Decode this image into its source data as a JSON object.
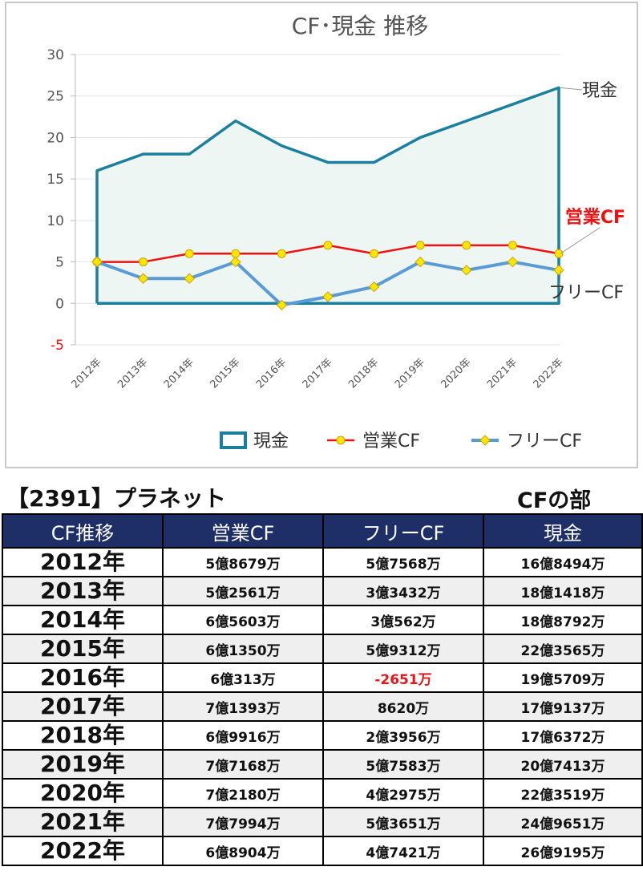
{
  "chart_data": {
    "type": "line",
    "title": "CF･現金 推移",
    "categories": [
      "2012年",
      "2013年",
      "2014年",
      "2015年",
      "2016年",
      "2017年",
      "2018年",
      "2019年",
      "2020年",
      "2021年",
      "2022年"
    ],
    "ylim": [
      -5,
      30
    ],
    "yticks": [
      "30",
      "25",
      "20",
      "15",
      "10",
      "5",
      "0",
      "-5"
    ],
    "grid": true,
    "series": [
      {
        "name": "現金",
        "style": "area",
        "color": "#1b7f9e",
        "values": [
          16,
          18,
          18,
          22,
          19,
          17,
          17,
          20,
          22,
          24,
          26
        ]
      },
      {
        "name": "営業CF",
        "style": "line-marker",
        "color": "#ee1111",
        "values": [
          5,
          5,
          6,
          6,
          6,
          7,
          6,
          7,
          7,
          7,
          6
        ]
      },
      {
        "name": "フリーCF",
        "style": "line-marker",
        "color": "#5b9bd5",
        "values": [
          5,
          3,
          3,
          5,
          -0.2,
          0.8,
          2,
          5,
          4,
          5,
          4
        ]
      }
    ],
    "legend_position": "bottom",
    "colors": {
      "area_fill": "#eef6f4",
      "marker_fill": "#ffe600",
      "marker_stroke": "#c9a400",
      "negative_tick": "#ee1111"
    }
  },
  "company_title": "【2391】プラネット",
  "section_title": "CFの部",
  "table": {
    "headers": [
      "CF推移",
      "営業CF",
      "フリーCF",
      "現金"
    ],
    "rows": [
      {
        "year": "2012年",
        "op_cf": "5億8679万",
        "free_cf": "5億7568万",
        "cash": "16億8494万"
      },
      {
        "year": "2013年",
        "op_cf": "5億2561万",
        "free_cf": "3億3432万",
        "cash": "18億1418万"
      },
      {
        "year": "2014年",
        "op_cf": "6億5603万",
        "free_cf": "3億562万",
        "cash": "18億8792万"
      },
      {
        "year": "2015年",
        "op_cf": "6億1350万",
        "free_cf": "5億9312万",
        "cash": "22億3565万"
      },
      {
        "year": "2016年",
        "op_cf": "6億313万",
        "free_cf": "-2651万",
        "cash": "19億5709万"
      },
      {
        "year": "2017年",
        "op_cf": "7億1393万",
        "free_cf": "8620万",
        "cash": "17億9137万"
      },
      {
        "year": "2018年",
        "op_cf": "6億9916万",
        "free_cf": "2億3956万",
        "cash": "17億6372万"
      },
      {
        "year": "2019年",
        "op_cf": "7億7168万",
        "free_cf": "5億7583万",
        "cash": "20億7413万"
      },
      {
        "year": "2020年",
        "op_cf": "7億2180万",
        "free_cf": "4億2975万",
        "cash": "22億3519万"
      },
      {
        "year": "2021年",
        "op_cf": "7億7994万",
        "free_cf": "5億3651万",
        "cash": "24億9651万"
      },
      {
        "year": "2022年",
        "op_cf": "6億8904万",
        "free_cf": "4億7421万",
        "cash": "26億9195万"
      }
    ]
  }
}
